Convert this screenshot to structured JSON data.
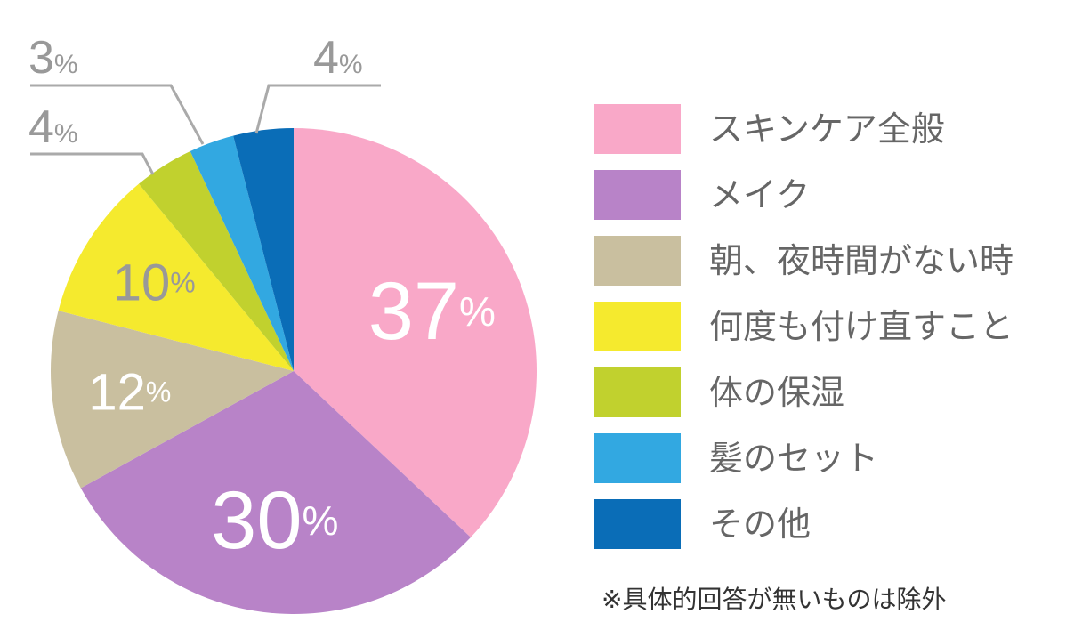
{
  "chart_data": {
    "type": "pie",
    "categories": [
      "スキンケア全般",
      "メイク",
      "朝、夜時間がない時",
      "何度も付け直すこと",
      "体の保湿",
      "髪のセット",
      "その他"
    ],
    "values": [
      37,
      30,
      12,
      10,
      4,
      3,
      4
    ],
    "value_suffix": "%",
    "colors": [
      "#F9A8C8",
      "#B883C8",
      "#C9BF9F",
      "#F5EA2E",
      "#C1D12E",
      "#32A8E1",
      "#0A6DB7"
    ],
    "label_colors": [
      "#ffffff",
      "#ffffff",
      "#ffffff",
      "#999999",
      "#999999",
      "#999999",
      "#999999"
    ],
    "legend_placement": "right",
    "footnote": "※具体的回答が無いものは除外"
  }
}
